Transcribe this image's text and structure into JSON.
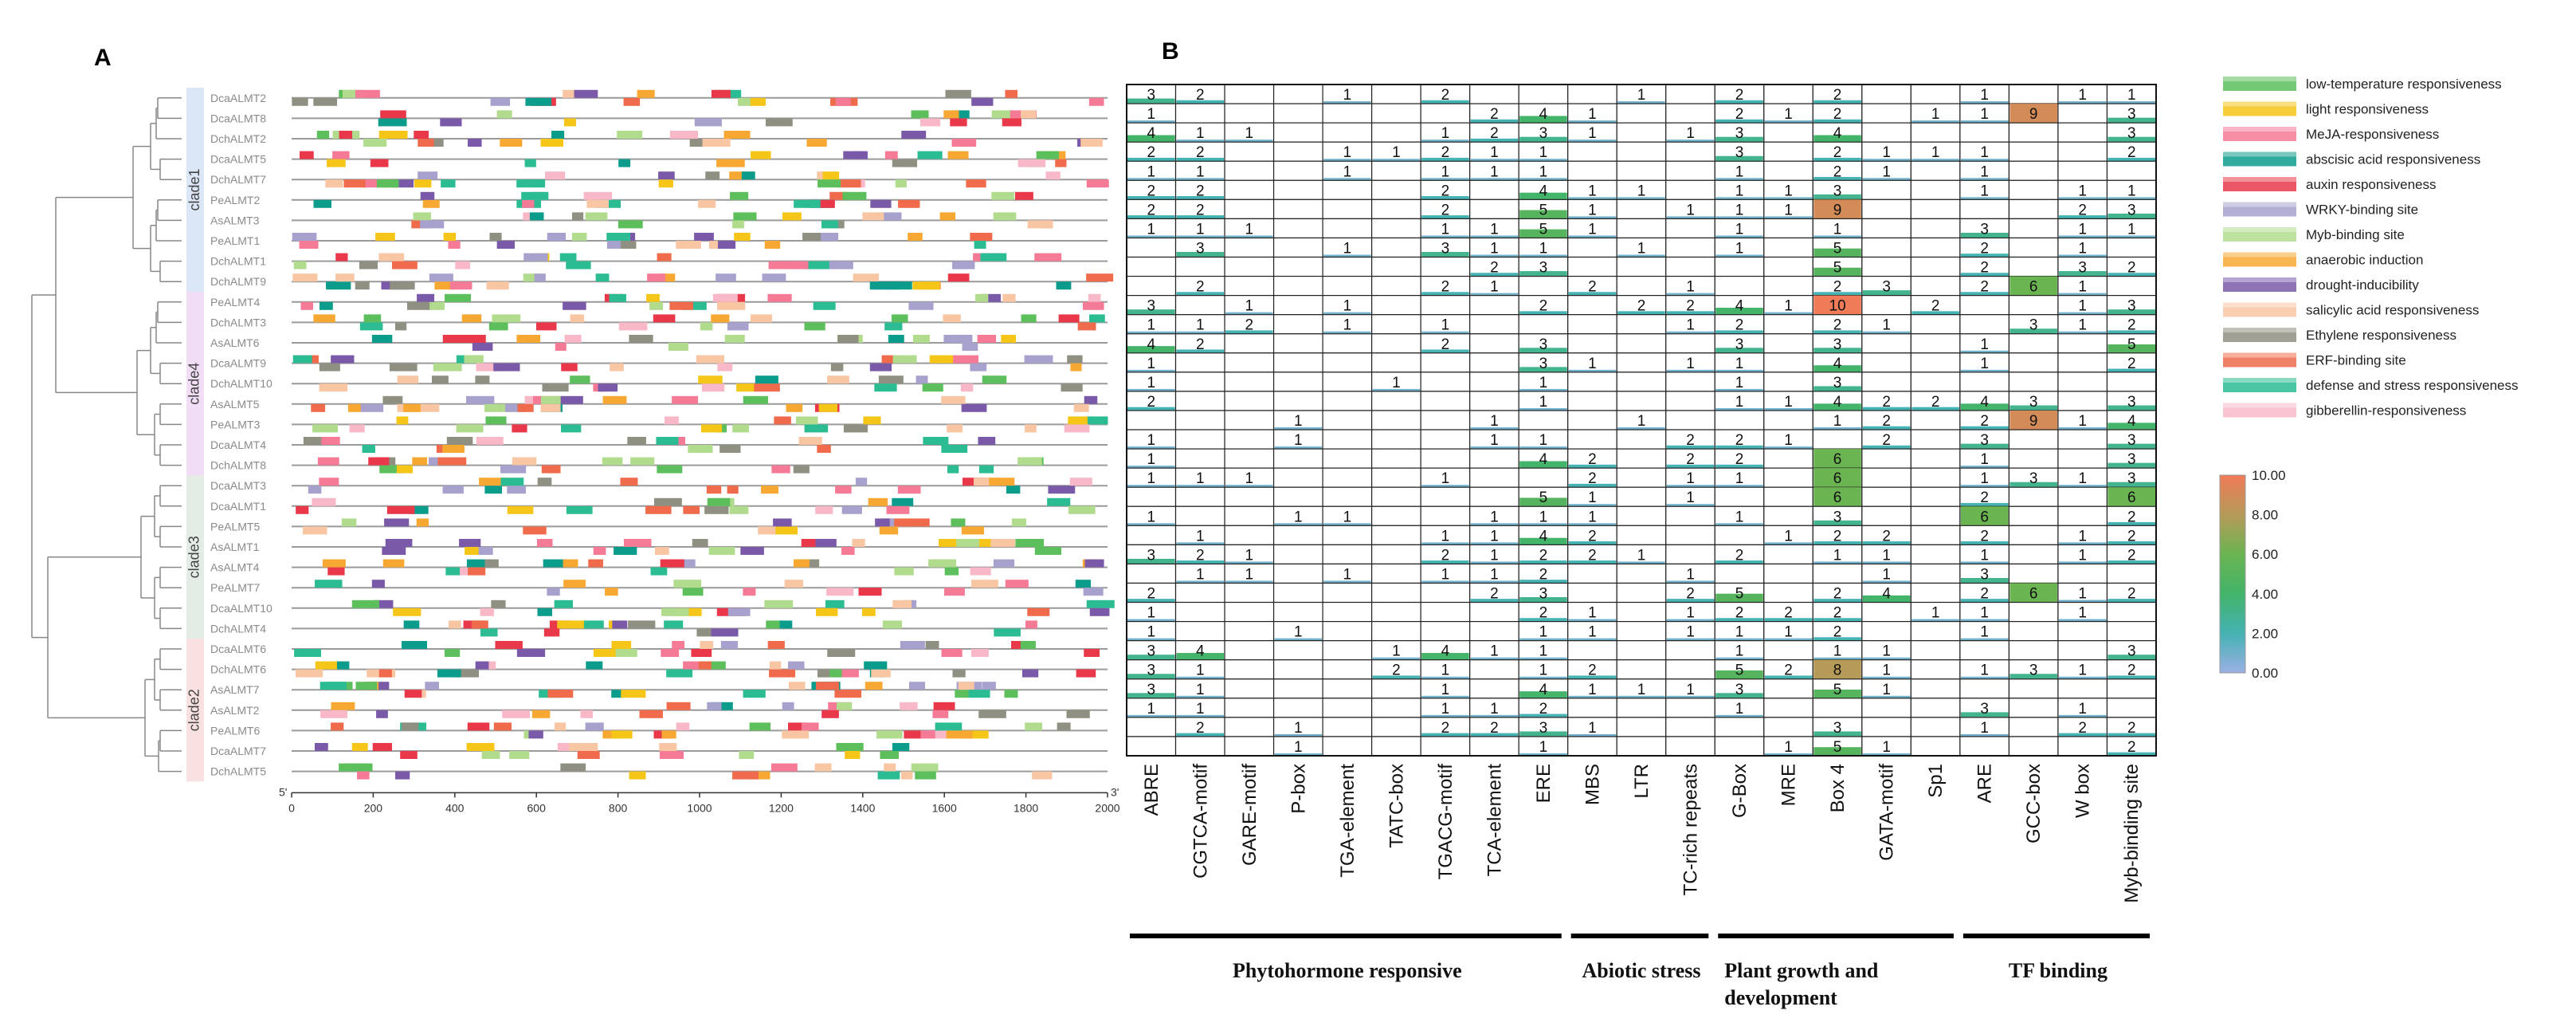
{
  "panel_labels": {
    "a": "A",
    "b": "B"
  },
  "panel_a": {
    "axis_start": "5'",
    "axis_end": "3'",
    "x_ticks": [
      "0",
      "200",
      "400",
      "600",
      "800",
      "1000",
      "1200",
      "1400",
      "1600",
      "1800",
      "2000"
    ],
    "clade_labels": [
      "clade1",
      "clade4",
      "clade3",
      "clade2"
    ],
    "clade_colors": [
      "#dbe6f7",
      "#f1ddf5",
      "#e4ece6",
      "#fae1e1"
    ]
  },
  "chart_data": {
    "type": "heatmap",
    "title": "",
    "genes": [
      "DcaALMT2",
      "DcaALMT8",
      "DchALMT2",
      "DcaALMT5",
      "DchALMT7",
      "PeALMT2",
      "AsALMT3",
      "PeALMT1",
      "DchALMT1",
      "DchALMT9",
      "PeALMT4",
      "DchALMT3",
      "AsALMT6",
      "DcaALMT9",
      "DchALMT10",
      "AsALMT5",
      "PeALMT3",
      "DcaALMT4",
      "DchALMT8",
      "DcaALMT3",
      "DcaALMT1",
      "PeALMT5",
      "AsALMT1",
      "AsALMT4",
      "PeALMT7",
      "DcaALMT10",
      "DchALMT4",
      "DcaALMT6",
      "DchALMT6",
      "AsALMT7",
      "AsALMT2",
      "PeALMT6",
      "DcaALMT7",
      "DchALMT5"
    ],
    "clades": [
      {
        "name": "clade1",
        "start": 0,
        "end": 9
      },
      {
        "name": "clade4",
        "start": 10,
        "end": 18
      },
      {
        "name": "clade3",
        "start": 19,
        "end": 26
      },
      {
        "name": "clade2",
        "start": 27,
        "end": 33
      }
    ],
    "columns": [
      "ABRE",
      "CGTCA-motif",
      "GARE-motif",
      "P-box",
      "TGA-element",
      "TATC-box",
      "TGACG-motif",
      "TCA-element",
      "ERE",
      "MBS",
      "LTR",
      "TC-rich repeats",
      "G-Box",
      "MRE",
      "Box 4",
      "GATA-motif",
      "Sp1",
      "ARE",
      "GCC-box",
      "W box",
      "Myb-binding site"
    ],
    "column_groups": [
      {
        "name": "Phytohormone responsive",
        "start": 0,
        "end": 8
      },
      {
        "name": "Abiotic stress",
        "start": 9,
        "end": 11
      },
      {
        "name": "Plant growth and development",
        "start": 12,
        "end": 16
      },
      {
        "name": "TF binding",
        "start": 17,
        "end": 20
      }
    ],
    "values": [
      [
        3,
        2,
        0,
        0,
        1,
        0,
        2,
        0,
        0,
        0,
        1,
        0,
        2,
        0,
        2,
        0,
        0,
        1,
        0,
        1,
        1
      ],
      [
        1,
        0,
        0,
        0,
        0,
        0,
        0,
        2,
        4,
        1,
        0,
        0,
        2,
        1,
        2,
        0,
        1,
        1,
        9,
        0,
        3
      ],
      [
        4,
        1,
        1,
        0,
        0,
        0,
        1,
        2,
        3,
        1,
        0,
        1,
        3,
        0,
        4,
        0,
        0,
        0,
        0,
        0,
        3
      ],
      [
        2,
        2,
        0,
        0,
        1,
        1,
        2,
        1,
        1,
        0,
        0,
        0,
        3,
        0,
        2,
        1,
        1,
        1,
        0,
        0,
        2
      ],
      [
        1,
        1,
        0,
        0,
        1,
        0,
        1,
        1,
        1,
        0,
        0,
        0,
        1,
        0,
        2,
        1,
        0,
        1,
        0,
        0,
        0
      ],
      [
        2,
        2,
        0,
        0,
        0,
        0,
        2,
        0,
        4,
        1,
        1,
        0,
        1,
        1,
        3,
        0,
        0,
        1,
        0,
        1,
        1
      ],
      [
        2,
        2,
        0,
        0,
        0,
        0,
        2,
        0,
        5,
        1,
        0,
        1,
        1,
        1,
        9,
        0,
        0,
        0,
        0,
        2,
        3
      ],
      [
        1,
        1,
        1,
        0,
        0,
        0,
        1,
        1,
        5,
        1,
        0,
        0,
        1,
        0,
        1,
        0,
        0,
        3,
        0,
        1,
        1
      ],
      [
        0,
        3,
        0,
        0,
        1,
        0,
        3,
        1,
        1,
        0,
        1,
        0,
        1,
        0,
        5,
        0,
        0,
        2,
        0,
        1,
        0
      ],
      [
        0,
        0,
        0,
        0,
        0,
        0,
        0,
        2,
        3,
        0,
        0,
        0,
        0,
        0,
        5,
        0,
        0,
        2,
        0,
        3,
        2
      ],
      [
        0,
        2,
        0,
        0,
        0,
        0,
        2,
        1,
        0,
        2,
        0,
        1,
        0,
        0,
        2,
        3,
        0,
        2,
        6,
        1,
        0
      ],
      [
        3,
        0,
        1,
        0,
        1,
        0,
        0,
        0,
        2,
        0,
        2,
        2,
        4,
        1,
        10,
        0,
        2,
        0,
        0,
        1,
        3
      ],
      [
        1,
        1,
        2,
        0,
        1,
        0,
        1,
        0,
        0,
        0,
        0,
        1,
        2,
        0,
        2,
        1,
        0,
        0,
        3,
        1,
        2
      ],
      [
        4,
        2,
        0,
        0,
        0,
        0,
        2,
        0,
        3,
        0,
        0,
        0,
        3,
        0,
        3,
        0,
        0,
        1,
        0,
        0,
        5
      ],
      [
        1,
        0,
        0,
        0,
        0,
        0,
        0,
        0,
        3,
        1,
        0,
        1,
        1,
        0,
        4,
        0,
        0,
        1,
        0,
        0,
        2
      ],
      [
        1,
        0,
        0,
        0,
        0,
        1,
        0,
        0,
        1,
        0,
        0,
        0,
        1,
        0,
        3,
        0,
        0,
        0,
        0,
        0,
        0
      ],
      [
        2,
        0,
        0,
        0,
        0,
        0,
        0,
        0,
        1,
        0,
        0,
        0,
        1,
        1,
        4,
        2,
        2,
        4,
        3,
        0,
        3
      ],
      [
        0,
        0,
        0,
        1,
        0,
        0,
        0,
        1,
        0,
        0,
        1,
        0,
        0,
        0,
        1,
        2,
        0,
        2,
        9,
        1,
        4
      ],
      [
        1,
        0,
        0,
        1,
        0,
        0,
        0,
        1,
        1,
        0,
        0,
        2,
        2,
        1,
        0,
        2,
        0,
        3,
        0,
        0,
        3
      ],
      [
        1,
        0,
        0,
        0,
        0,
        0,
        0,
        0,
        4,
        2,
        0,
        2,
        2,
        0,
        6,
        0,
        0,
        1,
        0,
        0,
        3
      ],
      [
        1,
        1,
        1,
        0,
        0,
        0,
        1,
        0,
        0,
        2,
        0,
        1,
        1,
        0,
        6,
        0,
        0,
        1,
        3,
        1,
        3
      ],
      [
        0,
        0,
        0,
        0,
        0,
        0,
        0,
        0,
        5,
        1,
        0,
        1,
        0,
        0,
        6,
        0,
        0,
        2,
        0,
        0,
        6
      ],
      [
        1,
        0,
        0,
        1,
        1,
        0,
        0,
        1,
        1,
        1,
        0,
        0,
        1,
        0,
        3,
        0,
        0,
        6,
        0,
        0,
        2
      ],
      [
        0,
        1,
        0,
        0,
        0,
        0,
        1,
        1,
        4,
        2,
        0,
        0,
        0,
        1,
        2,
        2,
        0,
        2,
        0,
        1,
        2
      ],
      [
        3,
        2,
        1,
        0,
        0,
        0,
        2,
        1,
        2,
        2,
        1,
        0,
        2,
        0,
        1,
        1,
        0,
        1,
        0,
        1,
        2
      ],
      [
        0,
        1,
        1,
        0,
        1,
        0,
        1,
        1,
        2,
        0,
        0,
        1,
        0,
        0,
        0,
        1,
        0,
        3,
        0,
        0,
        0
      ],
      [
        2,
        0,
        0,
        0,
        0,
        0,
        0,
        2,
        3,
        0,
        0,
        2,
        5,
        0,
        2,
        4,
        0,
        2,
        6,
        1,
        2
      ],
      [
        1,
        0,
        0,
        0,
        0,
        0,
        0,
        0,
        2,
        1,
        0,
        1,
        2,
        2,
        2,
        0,
        1,
        1,
        0,
        1,
        0
      ],
      [
        1,
        0,
        0,
        1,
        0,
        0,
        0,
        0,
        1,
        1,
        0,
        1,
        1,
        1,
        2,
        0,
        0,
        1,
        0,
        0,
        0
      ],
      [
        3,
        4,
        0,
        0,
        0,
        1,
        4,
        1,
        1,
        0,
        0,
        0,
        1,
        0,
        1,
        1,
        0,
        0,
        0,
        0,
        3
      ],
      [
        3,
        1,
        0,
        0,
        0,
        2,
        1,
        0,
        1,
        2,
        0,
        0,
        5,
        2,
        8,
        1,
        0,
        1,
        3,
        1,
        2
      ],
      [
        3,
        1,
        0,
        0,
        0,
        0,
        1,
        0,
        4,
        1,
        1,
        1,
        3,
        0,
        5,
        1,
        0,
        0,
        0,
        0,
        0
      ],
      [
        1,
        1,
        0,
        0,
        0,
        0,
        1,
        1,
        2,
        0,
        0,
        0,
        1,
        0,
        0,
        0,
        0,
        3,
        0,
        1,
        0
      ],
      [
        0,
        2,
        0,
        1,
        0,
        0,
        2,
        2,
        3,
        1,
        0,
        0,
        0,
        0,
        3,
        0,
        0,
        1,
        0,
        2,
        2
      ]
    ],
    "extra_row": [
      0,
      0,
      0,
      1,
      0,
      0,
      0,
      0,
      1,
      0,
      0,
      0,
      0,
      1,
      5,
      1,
      0,
      0,
      0,
      0,
      2
    ],
    "colorbar": {
      "min": 0,
      "max": 10,
      "ticks": [
        "0.00",
        "2.00",
        "4.00",
        "6.00",
        "8.00",
        "10.00"
      ],
      "stops": [
        "#9ab0e3",
        "#45b2b3",
        "#43b46a",
        "#6bb452",
        "#b69a58",
        "#f07b58"
      ]
    },
    "legend": [
      {
        "label": "low-temperature responsiveness",
        "color": "#5cbf5c"
      },
      {
        "label": "light responsiveness",
        "color": "#f5c518"
      },
      {
        "label": "MeJA-responsiveness",
        "color": "#f47a96"
      },
      {
        "label": "abscisic acid responsiveness",
        "color": "#0c9c8c"
      },
      {
        "label": "auxin responsiveness",
        "color": "#e8384a"
      },
      {
        "label": "WRKY-binding site",
        "color": "#a7a1cd"
      },
      {
        "label": "Myb-binding site",
        "color": "#b1dc8e"
      },
      {
        "label": "anaerobic induction",
        "color": "#f7a832"
      },
      {
        "label": "drought-inducibility",
        "color": "#7a5aa8"
      },
      {
        "label": "salicylic acid responsiveness",
        "color": "#f8c6a3"
      },
      {
        "label": "Ethylene responsiveness",
        "color": "#8f8f82"
      },
      {
        "label": "ERF-binding site",
        "color": "#ef6b4b"
      },
      {
        "label": "defense and stress responsiveness",
        "color": "#2cbc94"
      },
      {
        "label": "gibberellin-responsiveness",
        "color": "#f8b8c8"
      }
    ]
  }
}
